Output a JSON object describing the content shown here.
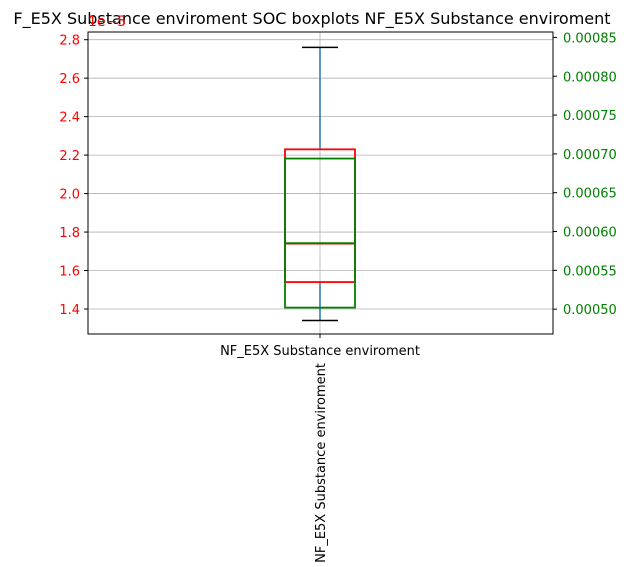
{
  "chart_data": {
    "type": "boxplot",
    "title": "F_E5X Substance enviroment SOC boxplots NF_E5X Substance enviroment",
    "categories": [
      "NF_E5X Substance enviroment"
    ],
    "xlabel_rotated": "NF_E5X Substance enviroment",
    "grid": true,
    "left_axis": {
      "color": "#ff0000",
      "offset_text": "1e−5",
      "scale": 1e-05,
      "ylim": [
        1.27,
        2.84
      ],
      "ticks": [
        1.4,
        1.6,
        1.8,
        2.0,
        2.2,
        2.4,
        2.6,
        2.8
      ],
      "tick_labels": [
        "1.4",
        "1.6",
        "1.8",
        "2.0",
        "2.2",
        "2.4",
        "2.6",
        "2.8"
      ]
    },
    "right_axis": {
      "color": "#008000",
      "ylim": [
        0.000468,
        0.000857
      ],
      "ticks": [
        0.0005,
        0.00055,
        0.0006,
        0.00065,
        0.0007,
        0.00075,
        0.0008,
        0.00085
      ],
      "tick_labels": [
        "0.00050",
        "0.00055",
        "0.00060",
        "0.00065",
        "0.00070",
        "0.00075",
        "0.00080",
        "0.00085"
      ]
    },
    "series": [
      {
        "axis": "left",
        "color": "#ff0000",
        "whisker_low": 1.34,
        "q1": 1.54,
        "median": 1.74,
        "q3": 2.23,
        "whisker_high": 2.76,
        "whisker_color": "#1f77b4",
        "cap_color": "#000000"
      },
      {
        "axis": "right",
        "color": "#008000",
        "q1": 0.000502,
        "median": 0.000585,
        "q3": 0.000694
      }
    ]
  }
}
